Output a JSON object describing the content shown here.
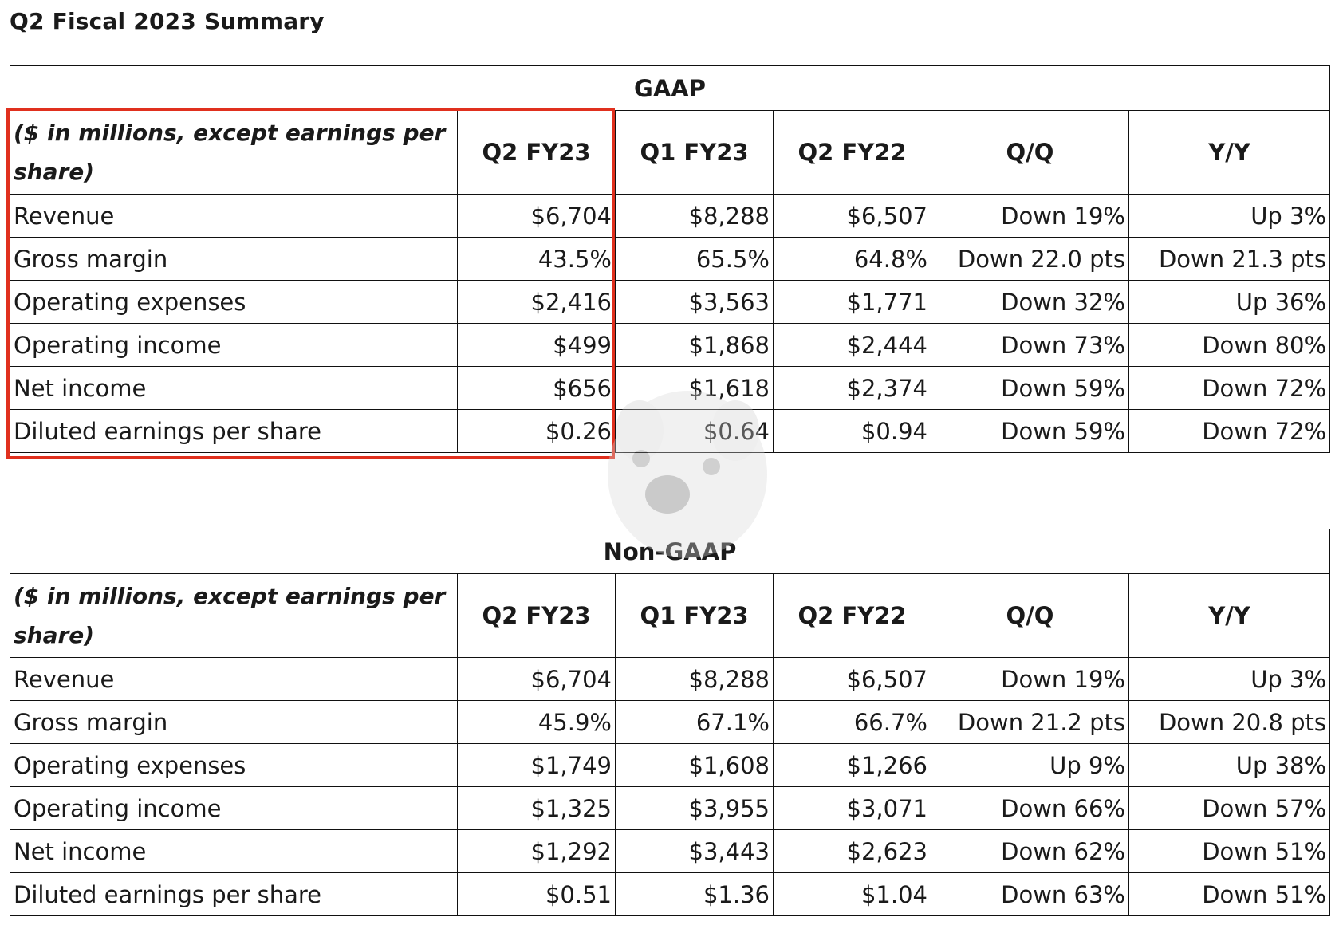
{
  "page_title": "Q2 Fiscal 2023 Summary",
  "gaap": {
    "title": "GAAP",
    "columns": [
      "($ in millions, except earnings per share)",
      "Q2 FY23",
      "Q1 FY23",
      "Q2 FY22",
      "Q/Q",
      "Y/Y"
    ],
    "rows": [
      [
        "Revenue",
        "$6,704",
        "$8,288",
        "$6,507",
        "Down 19%",
        "Up 3%"
      ],
      [
        "Gross margin",
        "43.5%",
        "65.5%",
        "64.8%",
        "Down 22.0 pts",
        "Down 21.3 pts"
      ],
      [
        "Operating expenses",
        "$2,416",
        "$3,563",
        "$1,771",
        "Down 32%",
        "Up 36%"
      ],
      [
        "Operating income",
        "$499",
        "$1,868",
        "$2,444",
        "Down 73%",
        "Down 80%"
      ],
      [
        "Net income",
        "$656",
        "$1,618",
        "$2,374",
        "Down 59%",
        "Down 72%"
      ],
      [
        "Diluted earnings per share",
        "$0.26",
        "$0.64",
        "$0.94",
        "Down 59%",
        "Down 72%"
      ]
    ]
  },
  "non_gaap": {
    "title": "Non-GAAP",
    "columns": [
      "($ in millions, except earnings per share)",
      "Q2 FY23",
      "Q1 FY23",
      "Q2 FY22",
      "Q/Q",
      "Y/Y"
    ],
    "rows": [
      [
        "Revenue",
        "$6,704",
        "$8,288",
        "$6,507",
        "Down 19%",
        "Up 3%"
      ],
      [
        "Gross margin",
        "45.9%",
        "67.1%",
        "66.7%",
        "Down 21.2 pts",
        "Down 20.8 pts"
      ],
      [
        "Operating expenses",
        "$1,749",
        "$1,608",
        "$1,266",
        "Up 9%",
        "Up 38%"
      ],
      [
        "Operating income",
        "$1,325",
        "$3,955",
        "$3,071",
        "Down 66%",
        "Down 57%"
      ],
      [
        "Net income",
        "$1,292",
        "$3,443",
        "$2,623",
        "Down 62%",
        "Down 51%"
      ],
      [
        "Diluted earnings per share",
        "$0.51",
        "$1.36",
        "$1.04",
        "Down 63%",
        "Down 51%"
      ]
    ]
  },
  "colors": {
    "highlight": "#e0301e",
    "text": "#1a1a1a",
    "border": "#111111"
  },
  "icons": {
    "watermark": "dog-face-watermark-icon"
  }
}
